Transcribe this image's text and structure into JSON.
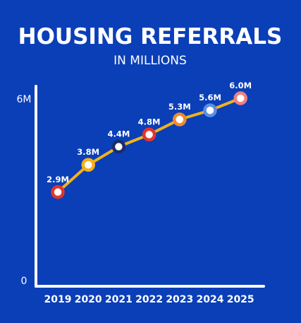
{
  "chart_data": {
    "type": "line",
    "title": "HOUSING REFERRALS",
    "subtitle": "IN MILLIONS",
    "x": [
      "2019",
      "2020",
      "2021",
      "2022",
      "2023",
      "2024",
      "2025"
    ],
    "series": [
      {
        "values": [
          2.9,
          3.8,
          4.4,
          4.8,
          5.3,
          5.6,
          6.0
        ],
        "data_labels": [
          "2.9M",
          "3.8M",
          "4.4M",
          "4.8M",
          "5.3M",
          "5.6M",
          "6.0M"
        ],
        "line_color": "#f2b21c",
        "marker_colors": [
          "#e3352c",
          "#f2b21c",
          "#1a2c6b",
          "#e3352c",
          "#f28a2a",
          "#5b8fe6",
          "#f08080"
        ]
      }
    ],
    "y_ticks": [
      {
        "value": 0,
        "label": "0"
      },
      {
        "value": 6,
        "label": "6M"
      }
    ],
    "ylim": [
      0,
      6
    ],
    "grid": false,
    "background": "#0b3fb8",
    "text_color": "#ffffff"
  }
}
